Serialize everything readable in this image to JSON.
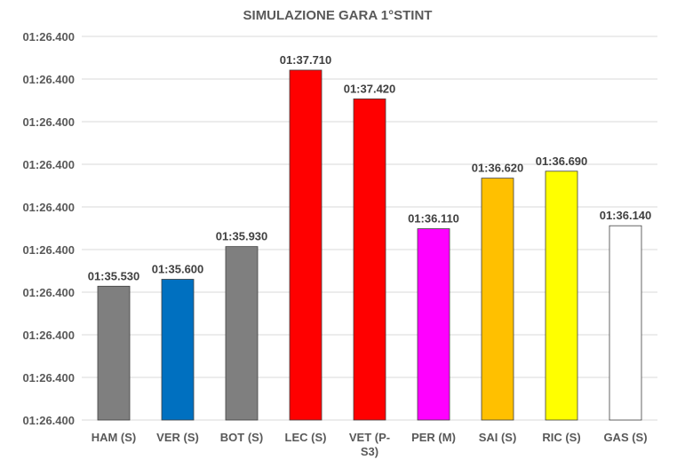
{
  "chart_data": {
    "type": "bar",
    "title": "SIMULAZIONE GARA 1°STINT",
    "xlabel": "",
    "ylabel": "",
    "categories": [
      "HAM (S)",
      "VER (S)",
      "BOT (S)",
      "LEC (S)",
      "VET (P-S3)",
      "PER (M)",
      "SAI (S)",
      "RIC (S)",
      "GAS (S)"
    ],
    "category_lines": [
      [
        "HAM (S)"
      ],
      [
        "VER (S)"
      ],
      [
        "BOT (S)"
      ],
      [
        "LEC (S)"
      ],
      [
        "VET (P-",
        "S3)"
      ],
      [
        "PER (M)"
      ],
      [
        "SAI (S)"
      ],
      [
        "RIC (S)"
      ],
      [
        "GAS (S)"
      ]
    ],
    "values": [
      "01:35.530",
      "01:35.600",
      "01:35.930",
      "01:37.710",
      "01:37.420",
      "01:36.110",
      "01:36.620",
      "01:36.690",
      "01:36.140"
    ],
    "values_seconds": [
      95.53,
      95.6,
      95.93,
      97.71,
      97.42,
      96.11,
      96.62,
      96.69,
      96.14
    ],
    "colors": [
      "#7f7f7f",
      "#0070c0",
      "#7f7f7f",
      "#ff0000",
      "#ff0000",
      "#ff00ff",
      "#ffc000",
      "#ffff00",
      "#ffffff"
    ],
    "ylim_seconds": [
      94.18,
      98.05
    ],
    "y_tick_count": 10,
    "y_tick_labels": [
      "01:26.400",
      "01:26.400",
      "01:26.400",
      "01:26.400",
      "01:26.400",
      "01:26.400",
      "01:26.400",
      "01:26.400",
      "01:26.400",
      "01:26.400"
    ],
    "grid": true,
    "legend": "none"
  }
}
